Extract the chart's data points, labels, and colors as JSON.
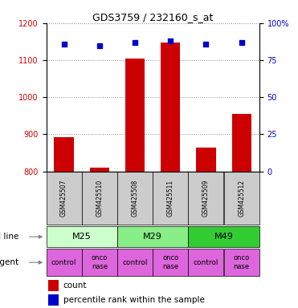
{
  "title": "GDS3759 / 232160_s_at",
  "samples": [
    "GSM425507",
    "GSM425510",
    "GSM425508",
    "GSM425511",
    "GSM425509",
    "GSM425512"
  ],
  "counts": [
    893,
    810,
    1105,
    1148,
    863,
    955
  ],
  "percentile_ranks": [
    86,
    85,
    87,
    88,
    86,
    87
  ],
  "ylim_left": [
    800,
    1200
  ],
  "yticks_left": [
    800,
    900,
    1000,
    1100,
    1200
  ],
  "ylim_right": [
    0,
    100
  ],
  "yticks_right": [
    0,
    25,
    50,
    75,
    100
  ],
  "ytick_labels_right": [
    "0",
    "25",
    "50",
    "75",
    "100%"
  ],
  "bar_color": "#cc0000",
  "dot_color": "#0000cc",
  "bar_width": 0.55,
  "cell_lines": [
    [
      "M25",
      0,
      2
    ],
    [
      "M29",
      2,
      4
    ],
    [
      "M49",
      4,
      6
    ]
  ],
  "cell_line_colors": [
    "#ccffcc",
    "#88ee88",
    "#33cc33"
  ],
  "agents": [
    "control",
    "onconase",
    "control",
    "onconase",
    "control",
    "onconase"
  ],
  "agent_color": "#dd66dd",
  "label_color_left": "#cc0000",
  "label_color_right": "#0000cc",
  "grid_color": "#888888",
  "sample_box_color": "#cccccc",
  "legend_count_label": "count",
  "legend_pct_label": "percentile rank within the sample"
}
